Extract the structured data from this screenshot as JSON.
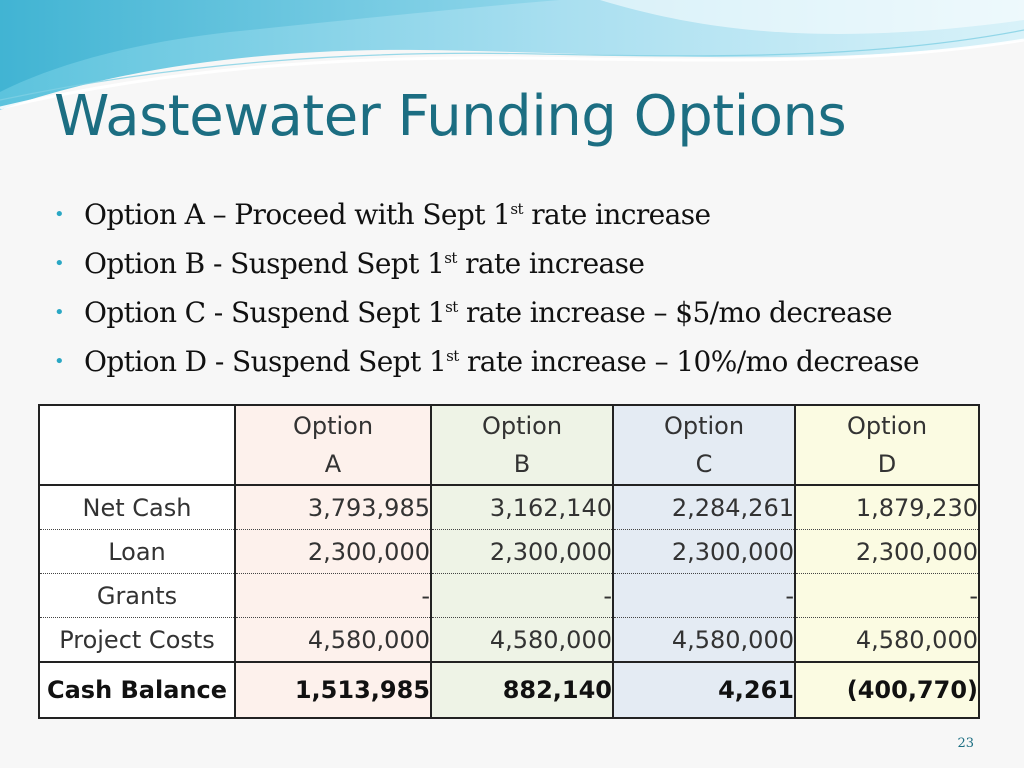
{
  "slide": {
    "title": "Wastewater Funding Options",
    "page_number": "23",
    "accent_color": "#1c6e82",
    "bullet_color": "#2aa7c4"
  },
  "bullets": [
    {
      "pre": "Option A – Proceed with Sept 1",
      "sup": "st",
      "post": " rate increase"
    },
    {
      "pre": "Option B - Suspend Sept 1",
      "sup": "st",
      "post": " rate increase"
    },
    {
      "pre": "Option C - Suspend Sept 1",
      "sup": "st",
      "post": " rate increase – $5/mo decrease"
    },
    {
      "pre": "Option D - Suspend Sept 1",
      "sup": "st",
      "post": " rate increase – 10%/mo decrease"
    }
  ],
  "table": {
    "columns": [
      {
        "line1": "Option",
        "line2": "A"
      },
      {
        "line1": "Option",
        "line2": "B"
      },
      {
        "line1": "Option",
        "line2": "C"
      },
      {
        "line1": "Option",
        "line2": "D"
      }
    ],
    "rows": [
      {
        "label": "Net Cash",
        "values": [
          "3,793,985",
          "3,162,140",
          "2,284,261",
          "1,879,230"
        ]
      },
      {
        "label": "Loan",
        "values": [
          "2,300,000",
          "2,300,000",
          "2,300,000",
          "2,300,000"
        ]
      },
      {
        "label": "Grants",
        "values": [
          "-",
          "-",
          "-",
          "-"
        ]
      },
      {
        "label": "Project Costs",
        "values": [
          "4,580,000",
          "4,580,000",
          "4,580,000",
          "4,580,000"
        ]
      }
    ],
    "total": {
      "label": "Cash Balance",
      "values": [
        "1,513,985",
        "882,140",
        "4,261",
        "(400,770)"
      ]
    },
    "column_colors": [
      "#fdf1ec",
      "#eef3e6",
      "#e4ebf3",
      "#fbfbe2"
    ]
  }
}
